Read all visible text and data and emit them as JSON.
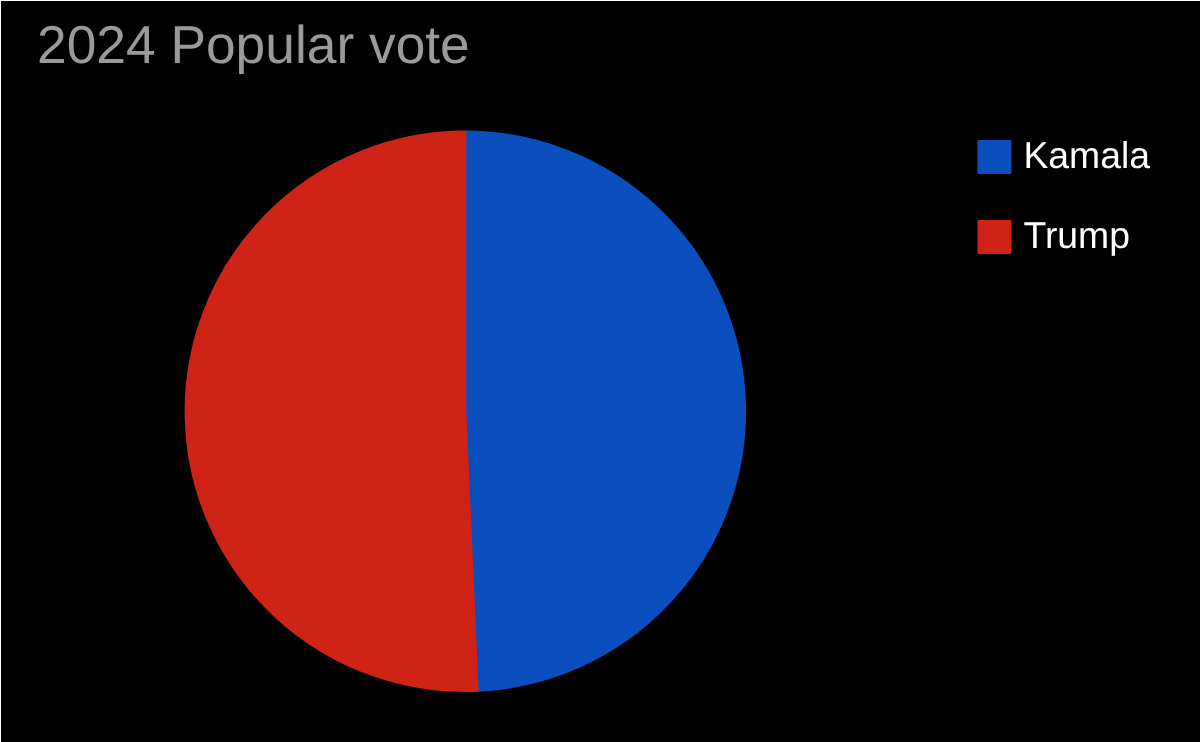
{
  "chart_data": {
    "type": "pie",
    "title": "2024 Popular vote",
    "categories": [
      "Kamala",
      "Trump"
    ],
    "values": [
      49.3,
      50.7
    ],
    "colors": [
      "#0b4fbf",
      "#cf2318"
    ],
    "legend": "top right"
  }
}
